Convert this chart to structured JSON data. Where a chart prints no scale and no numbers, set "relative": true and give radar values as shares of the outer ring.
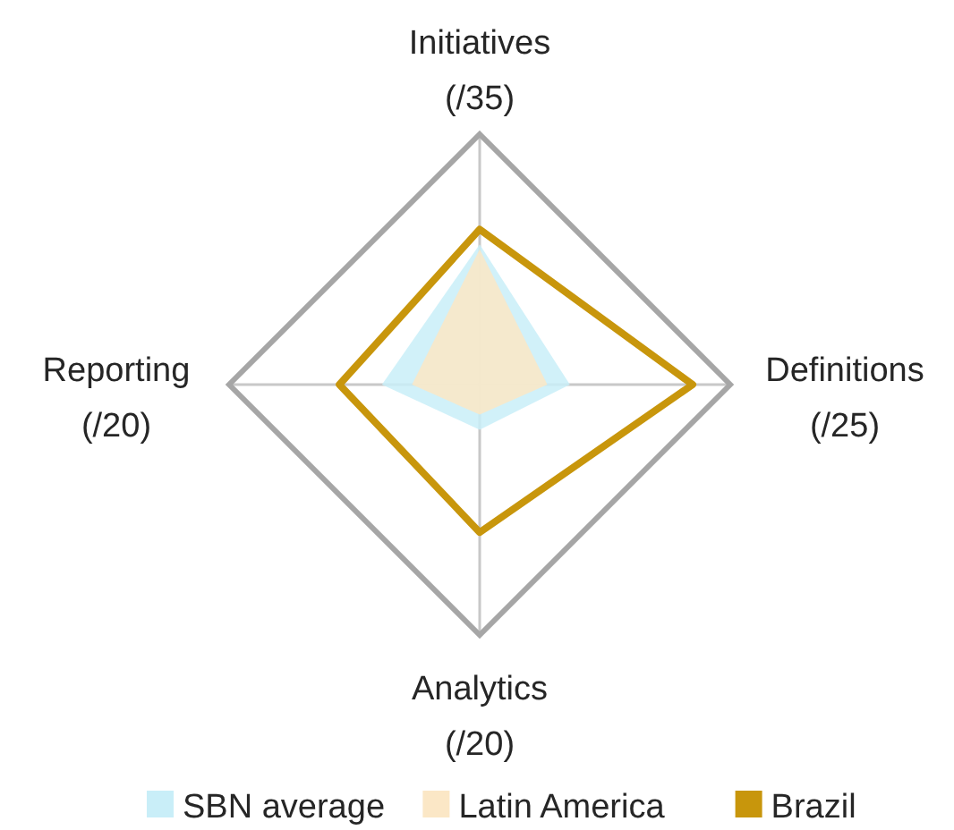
{
  "chart_data": {
    "type": "radar",
    "relative": true,
    "categories": [
      "Initiatives (/35)",
      "Definitions (/25)",
      "Analytics (/20)",
      "Reporting (/20)"
    ],
    "legend": "bottom",
    "series": [
      {
        "name": "SBN average",
        "type": "area",
        "color": "#c9eef8",
        "values": [
          0.56,
          0.36,
          0.18,
          0.39
        ]
      },
      {
        "name": "Latin America",
        "type": "area",
        "color": "#fbe7c6",
        "values": [
          0.54,
          0.27,
          0.12,
          0.27
        ]
      },
      {
        "name": "Brazil",
        "color": "#c8960c",
        "values": [
          0.62,
          0.85,
          0.59,
          0.56
        ]
      }
    ]
  }
}
